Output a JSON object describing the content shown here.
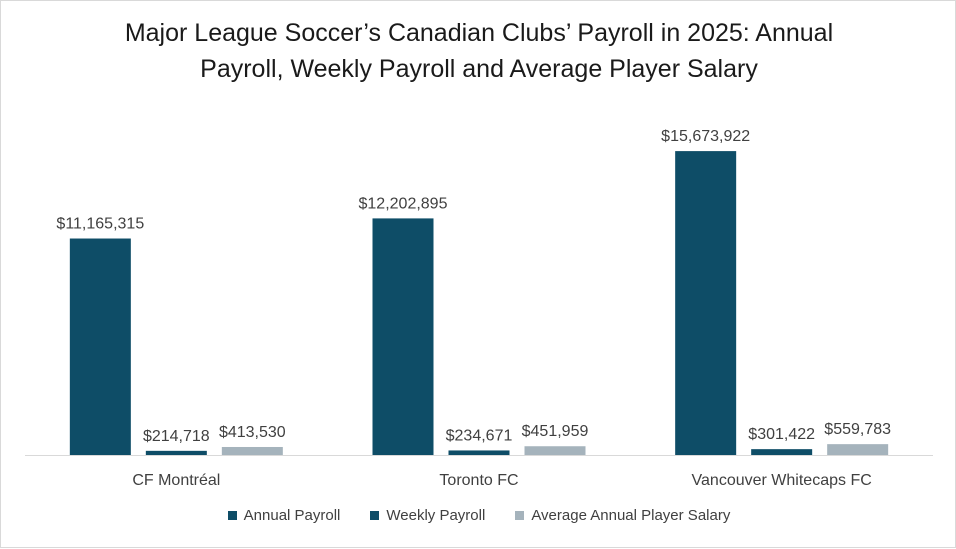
{
  "chart_data": {
    "type": "bar",
    "title_lines": [
      "Major League Soccer’s Canadian Clubs’ Payroll in 2025: Annual",
      "Payroll, Weekly Payroll and Average Player Salary"
    ],
    "categories": [
      "CF Montréal",
      "Toronto FC",
      "Vancouver Whitecaps FC"
    ],
    "series": [
      {
        "name": "Annual Payroll",
        "color": "#0e4d67",
        "values": [
          11165315,
          12202895,
          15673922
        ],
        "labels": [
          "$11,165,315",
          "$12,202,895",
          "$15,673,922"
        ]
      },
      {
        "name": "Weekly Payroll",
        "color": "#0e4d67",
        "values": [
          214718,
          234671,
          301422
        ],
        "labels": [
          "$214,718",
          "$234,671",
          "$301,422"
        ]
      },
      {
        "name": "Average Annual Player Salary",
        "color": "#a5b3bc",
        "values": [
          413530,
          451959,
          559783
        ],
        "labels": [
          "$413,530",
          "$451,959",
          "$559,783"
        ]
      }
    ],
    "ylim": [
      0,
      18000000
    ],
    "grid": false,
    "legend_position": "bottom",
    "xlabel": "",
    "ylabel": ""
  }
}
